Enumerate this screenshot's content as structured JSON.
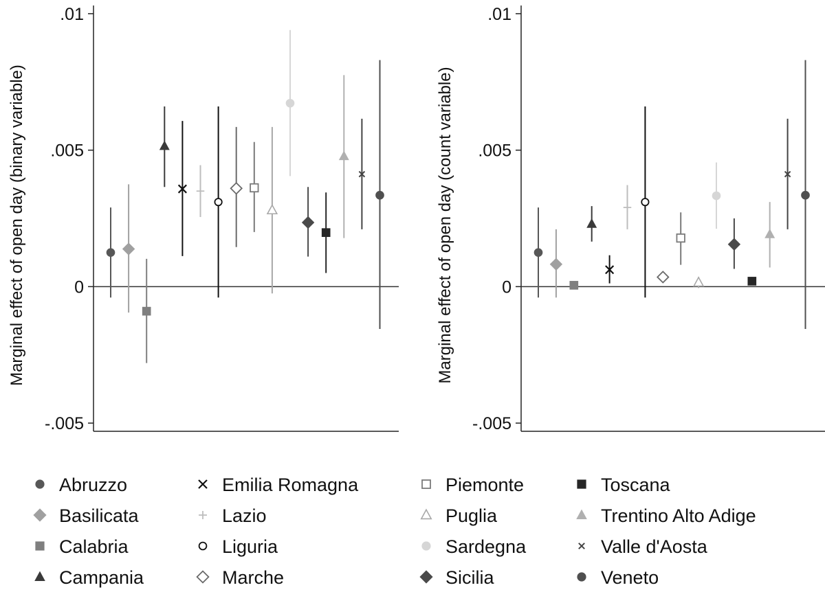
{
  "chart_data": [
    {
      "type": "scatter",
      "title": "",
      "xlabel": "",
      "ylabel": "Marginal effect of open day (binary variable)",
      "ylim": [
        -0.0053,
        0.0103
      ],
      "yticks": [
        -0.005,
        0,
        0.005,
        0.01
      ],
      "ytick_labels": [
        "-.005",
        "0",
        ".005",
        ".01"
      ],
      "reference_line": 0,
      "grid": false,
      "series": [
        {
          "name": "Abruzzo",
          "estimate": 0.00125,
          "ci": [
            -0.0004,
            0.0029
          ]
        },
        {
          "name": "Basilicata",
          "estimate": 0.00138,
          "ci": [
            -0.00095,
            0.00375
          ]
        },
        {
          "name": "Calabria",
          "estimate": -0.0009,
          "ci": [
            -0.0028,
            0.00102
          ]
        },
        {
          "name": "Campania",
          "estimate": 0.00515,
          "ci": [
            0.00365,
            0.0066
          ]
        },
        {
          "name": "Emilia Romagna",
          "estimate": 0.00358,
          "ci": [
            0.00112,
            0.00607
          ]
        },
        {
          "name": "Lazio",
          "estimate": 0.0035,
          "ci": [
            0.00255,
            0.00445
          ]
        },
        {
          "name": "Liguria",
          "estimate": 0.0031,
          "ci": [
            -0.0004,
            0.0066
          ]
        },
        {
          "name": "Marche",
          "estimate": 0.0036,
          "ci": [
            0.00145,
            0.00585
          ]
        },
        {
          "name": "Piemonte",
          "estimate": 0.00362,
          "ci": [
            0.002,
            0.0053
          ]
        },
        {
          "name": "Puglia",
          "estimate": 0.0028,
          "ci": [
            -0.00025,
            0.00585
          ]
        },
        {
          "name": "Sardegna",
          "estimate": 0.00672,
          "ci": [
            0.00405,
            0.0094
          ]
        },
        {
          "name": "Sicilia",
          "estimate": 0.00235,
          "ci": [
            0.0011,
            0.00365
          ]
        },
        {
          "name": "Toscana",
          "estimate": 0.00198,
          "ci": [
            0.0005,
            0.00345
          ]
        },
        {
          "name": "Trentino Alto Adige",
          "estimate": 0.00478,
          "ci": [
            0.00178,
            0.00775
          ]
        },
        {
          "name": "Valle d'Aosta",
          "estimate": 0.00412,
          "ci": [
            0.0021,
            0.00615
          ]
        },
        {
          "name": "Veneto",
          "estimate": 0.00335,
          "ci": [
            -0.00155,
            0.0083
          ]
        }
      ]
    },
    {
      "type": "scatter",
      "title": "",
      "xlabel": "",
      "ylabel": "Marginal effect of open day (count variable)",
      "ylim": [
        -0.0053,
        0.0103
      ],
      "yticks": [
        -0.005,
        0,
        0.005,
        0.01
      ],
      "ytick_labels": [
        "-.005",
        "0",
        ".005",
        ".01"
      ],
      "reference_line": 0,
      "grid": false,
      "series": [
        {
          "name": "Abruzzo",
          "estimate": 0.00125,
          "ci": [
            -0.0004,
            0.0029
          ]
        },
        {
          "name": "Basilicata",
          "estimate": 0.00082,
          "ci": [
            -0.0004,
            0.0021
          ]
        },
        {
          "name": "Calabria",
          "estimate": 5e-05,
          "ci": [
            -0.0001,
            0.0002
          ]
        },
        {
          "name": "Campania",
          "estimate": 0.0023,
          "ci": [
            0.00165,
            0.00295
          ]
        },
        {
          "name": "Emilia Romagna",
          "estimate": 0.00062,
          "ci": [
            0.00012,
            0.00115
          ]
        },
        {
          "name": "Lazio",
          "estimate": 0.0029,
          "ci": [
            0.0021,
            0.00372
          ]
        },
        {
          "name": "Liguria",
          "estimate": 0.0031,
          "ci": [
            -0.0004,
            0.0066
          ]
        },
        {
          "name": "Marche",
          "estimate": 0.00035,
          "ci": [
            0.0002,
            0.0005
          ]
        },
        {
          "name": "Piemonte",
          "estimate": 0.00178,
          "ci": [
            0.0008,
            0.00272
          ]
        },
        {
          "name": "Puglia",
          "estimate": 0.00015,
          "ci": [
            -5e-05,
            0.00035
          ]
        },
        {
          "name": "Sardegna",
          "estimate": 0.00333,
          "ci": [
            0.00212,
            0.00455
          ]
        },
        {
          "name": "Sicilia",
          "estimate": 0.00155,
          "ci": [
            0.00065,
            0.0025
          ]
        },
        {
          "name": "Toscana",
          "estimate": 0.0002,
          "ci": [
            5e-05,
            0.00035
          ]
        },
        {
          "name": "Trentino Alto Adige",
          "estimate": 0.00192,
          "ci": [
            0.0007,
            0.0031
          ]
        },
        {
          "name": "Valle d'Aosta",
          "estimate": 0.00412,
          "ci": [
            0.0021,
            0.00615
          ]
        },
        {
          "name": "Veneto",
          "estimate": 0.00335,
          "ci": [
            -0.00155,
            0.0083
          ]
        }
      ]
    }
  ],
  "legend": {
    "placement": "bottom",
    "columns": 4,
    "entries": [
      {
        "label": "Abruzzo",
        "marker": "circle-filled",
        "color": "#575757"
      },
      {
        "label": "Basilicata",
        "marker": "diamond-filled",
        "color": "#a0a0a0"
      },
      {
        "label": "Calabria",
        "marker": "square-filled",
        "color": "#7f7f7f"
      },
      {
        "label": "Campania",
        "marker": "triangle-filled",
        "color": "#3a3a3a"
      },
      {
        "label": "Emilia Romagna",
        "marker": "x",
        "color": "#111111"
      },
      {
        "label": "Lazio",
        "marker": "plus",
        "color": "#bdbdbd"
      },
      {
        "label": "Liguria",
        "marker": "circle-hollow",
        "color": "#111111"
      },
      {
        "label": "Marche",
        "marker": "diamond-hollow",
        "color": "#6a6a6a"
      },
      {
        "label": "Piemonte",
        "marker": "square-hollow",
        "color": "#7a7a7a"
      },
      {
        "label": "Puglia",
        "marker": "triangle-hollow",
        "color": "#a8a8a8"
      },
      {
        "label": "Sardegna",
        "marker": "circle-filled",
        "color": "#d6d6d6"
      },
      {
        "label": "Sicilia",
        "marker": "diamond-filled",
        "color": "#4a4a4a"
      },
      {
        "label": "Toscana",
        "marker": "square-filled",
        "color": "#262626"
      },
      {
        "label": "Trentino Alto Adige",
        "marker": "triangle-filled",
        "color": "#b0b0b0"
      },
      {
        "label": "Valle d'Aosta",
        "marker": "x-small",
        "color": "#444444"
      },
      {
        "label": "Veneto",
        "marker": "circle-filled",
        "color": "#4f4f4f"
      }
    ]
  }
}
